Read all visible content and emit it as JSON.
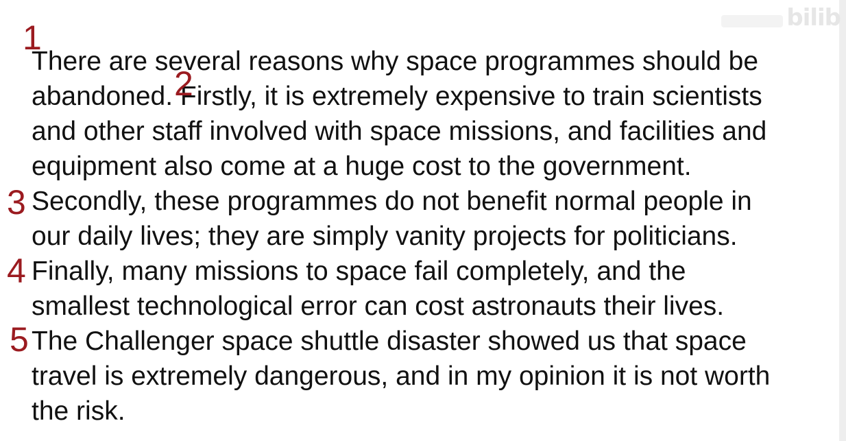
{
  "watermark": {
    "text": "bilib"
  },
  "markers": [
    "1",
    "2",
    "3",
    "4",
    "5"
  ],
  "lines": [
    "There are several reasons why space programmes should be",
    "abandoned. Firstly, it is extremely expensive to train scientists",
    "and other staff involved with space missions, and facilities and",
    "equipment also come at a huge cost to the government.",
    "Secondly, these programmes do not benefit normal people in",
    "our daily lives; they are simply vanity projects for politicians.",
    "Finally, many missions to space fail completely, and the",
    "smallest technological error can cost astronauts their lives.",
    "The Challenger space shuttle disaster showed us that space",
    "travel is extremely dangerous, and in my opinion it is not worth",
    "the risk."
  ],
  "colors": {
    "marker": "#9b1b20",
    "text": "#111111",
    "background": "#ffffff"
  }
}
